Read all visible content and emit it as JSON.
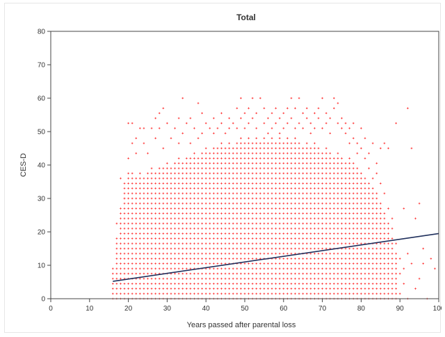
{
  "chart_data": {
    "type": "scatter",
    "title": "Total",
    "xlabel": "Years passed after parental loss",
    "ylabel": "CES-D",
    "xlim": [
      0,
      100
    ],
    "ylim": [
      0,
      80
    ],
    "x_ticks": [
      "0",
      "10",
      "20",
      "30",
      "40",
      "50",
      "60",
      "70",
      "80",
      "90",
      "100"
    ],
    "y_ticks": [
      "0",
      "10",
      "20",
      "30",
      "40",
      "50",
      "60",
      "70",
      "80"
    ],
    "grid": false,
    "legend": "none",
    "marker_color": "#ff3b3b",
    "fit_line_color": "#1f2f5c",
    "fit_line": {
      "x": [
        16,
        100
      ],
      "y": [
        5.2,
        19.5
      ]
    },
    "y_levels": [
      0,
      1.5,
      3,
      4.5,
      6,
      7.5,
      9,
      10.5,
      12,
      13.5,
      15,
      16.5,
      18,
      19.5,
      21,
      22.5,
      24,
      25.5,
      27,
      28.5,
      30,
      31.5,
      33,
      34.5,
      36,
      37.5,
      39,
      40.5,
      42,
      43.5,
      45,
      46.5,
      48,
      49.5,
      51,
      52.5,
      54,
      55.5,
      57,
      58.5,
      60
    ],
    "dense_columns": [
      {
        "x": 16,
        "top": 9
      },
      {
        "x": 17,
        "top": 18
      },
      {
        "x": 18,
        "top": 27
      },
      {
        "x": 19,
        "top": 34.5
      },
      {
        "x": 20,
        "top": 37.5
      },
      {
        "x": 21,
        "top": 37.5
      },
      {
        "x": 22,
        "top": 36
      },
      {
        "x": 23,
        "top": 37.5
      },
      {
        "x": 24,
        "top": 36
      },
      {
        "x": 25,
        "top": 37.5
      },
      {
        "x": 26,
        "top": 39
      },
      {
        "x": 27,
        "top": 37.5
      },
      {
        "x": 28,
        "top": 39
      },
      {
        "x": 29,
        "top": 39
      },
      {
        "x": 30,
        "top": 40.5
      },
      {
        "x": 31,
        "top": 39
      },
      {
        "x": 32,
        "top": 40.5
      },
      {
        "x": 33,
        "top": 42
      },
      {
        "x": 34,
        "top": 40.5
      },
      {
        "x": 35,
        "top": 42
      },
      {
        "x": 36,
        "top": 42
      },
      {
        "x": 37,
        "top": 43.5
      },
      {
        "x": 38,
        "top": 42
      },
      {
        "x": 39,
        "top": 43.5
      },
      {
        "x": 40,
        "top": 45
      },
      {
        "x": 41,
        "top": 43.5
      },
      {
        "x": 42,
        "top": 45
      },
      {
        "x": 43,
        "top": 45
      },
      {
        "x": 44,
        "top": 46.5
      },
      {
        "x": 45,
        "top": 45
      },
      {
        "x": 46,
        "top": 46.5
      },
      {
        "x": 47,
        "top": 45
      },
      {
        "x": 48,
        "top": 46.5
      },
      {
        "x": 49,
        "top": 48
      },
      {
        "x": 50,
        "top": 46.5
      },
      {
        "x": 51,
        "top": 48
      },
      {
        "x": 52,
        "top": 46.5
      },
      {
        "x": 53,
        "top": 48
      },
      {
        "x": 54,
        "top": 46.5
      },
      {
        "x": 55,
        "top": 48
      },
      {
        "x": 56,
        "top": 46.5
      },
      {
        "x": 57,
        "top": 48
      },
      {
        "x": 58,
        "top": 46.5
      },
      {
        "x": 59,
        "top": 48
      },
      {
        "x": 60,
        "top": 46.5
      },
      {
        "x": 61,
        "top": 48
      },
      {
        "x": 62,
        "top": 46.5
      },
      {
        "x": 63,
        "top": 48
      },
      {
        "x": 64,
        "top": 46.5
      },
      {
        "x": 65,
        "top": 45
      },
      {
        "x": 66,
        "top": 46.5
      },
      {
        "x": 67,
        "top": 45
      },
      {
        "x": 68,
        "top": 46.5
      },
      {
        "x": 69,
        "top": 45
      },
      {
        "x": 70,
        "top": 43.5
      },
      {
        "x": 71,
        "top": 45
      },
      {
        "x": 72,
        "top": 43.5
      },
      {
        "x": 73,
        "top": 42
      },
      {
        "x": 74,
        "top": 43.5
      },
      {
        "x": 75,
        "top": 42
      },
      {
        "x": 76,
        "top": 40.5
      },
      {
        "x": 77,
        "top": 42
      },
      {
        "x": 78,
        "top": 40.5
      },
      {
        "x": 79,
        "top": 39
      },
      {
        "x": 80,
        "top": 37.5
      },
      {
        "x": 81,
        "top": 36
      },
      {
        "x": 82,
        "top": 34.5
      },
      {
        "x": 83,
        "top": 33
      },
      {
        "x": 84,
        "top": 31.5
      },
      {
        "x": 85,
        "top": 28.5
      },
      {
        "x": 86,
        "top": 25.5
      },
      {
        "x": 87,
        "top": 22.5
      },
      {
        "x": 88,
        "top": 18
      },
      {
        "x": 89,
        "top": 13.5
      }
    ],
    "scattered_points": [
      [
        17,
        22.5
      ],
      [
        18,
        36
      ],
      [
        19,
        30
      ],
      [
        20,
        52.5
      ],
      [
        20,
        42
      ],
      [
        21,
        52.5
      ],
      [
        21,
        46.5
      ],
      [
        22,
        48
      ],
      [
        22,
        43.5
      ],
      [
        23,
        51
      ],
      [
        24,
        46.5
      ],
      [
        24,
        51
      ],
      [
        25,
        43.5
      ],
      [
        26,
        51
      ],
      [
        27,
        54
      ],
      [
        27,
        48
      ],
      [
        28,
        55.5
      ],
      [
        28,
        51
      ],
      [
        29,
        57
      ],
      [
        29,
        45
      ],
      [
        30,
        52.5
      ],
      [
        31,
        48
      ],
      [
        32,
        51
      ],
      [
        33,
        54
      ],
      [
        33,
        46.5
      ],
      [
        34,
        60
      ],
      [
        34,
        49.5
      ],
      [
        35,
        52.5
      ],
      [
        36,
        54
      ],
      [
        36,
        46.5
      ],
      [
        37,
        51
      ],
      [
        38,
        58.5
      ],
      [
        38,
        48
      ],
      [
        39,
        55.5
      ],
      [
        39,
        49.5
      ],
      [
        40,
        52.5
      ],
      [
        41,
        51
      ],
      [
        42,
        54
      ],
      [
        42,
        49.5
      ],
      [
        43,
        51
      ],
      [
        44,
        55.5
      ],
      [
        44,
        52.5
      ],
      [
        45,
        49.5
      ],
      [
        46,
        54
      ],
      [
        46,
        51
      ],
      [
        47,
        52.5
      ],
      [
        48,
        57
      ],
      [
        48,
        51
      ],
      [
        49,
        60
      ],
      [
        49,
        54
      ],
      [
        50,
        55.5
      ],
      [
        50,
        51
      ],
      [
        51,
        57
      ],
      [
        51,
        52.5
      ],
      [
        52,
        54
      ],
      [
        52,
        60
      ],
      [
        53,
        51
      ],
      [
        53,
        55.5
      ],
      [
        54,
        60
      ],
      [
        55,
        52.5
      ],
      [
        55,
        57
      ],
      [
        56,
        54
      ],
      [
        56,
        49.5
      ],
      [
        57,
        55.5
      ],
      [
        57,
        51
      ],
      [
        58,
        52.5
      ],
      [
        58,
        57
      ],
      [
        59,
        54
      ],
      [
        59,
        49.5
      ],
      [
        60,
        55.5
      ],
      [
        60,
        51
      ],
      [
        61,
        57
      ],
      [
        61,
        52.5
      ],
      [
        62,
        60
      ],
      [
        62,
        54
      ],
      [
        63,
        51
      ],
      [
        63,
        57
      ],
      [
        64,
        60
      ],
      [
        64,
        52.5
      ],
      [
        65,
        55.5
      ],
      [
        65,
        51
      ],
      [
        66,
        54
      ],
      [
        66,
        57
      ],
      [
        67,
        52.5
      ],
      [
        67,
        49.5
      ],
      [
        68,
        55.5
      ],
      [
        68,
        51
      ],
      [
        69,
        54
      ],
      [
        69,
        57
      ],
      [
        70,
        60
      ],
      [
        70,
        51
      ],
      [
        71,
        52.5
      ],
      [
        71,
        55.5
      ],
      [
        72,
        54
      ],
      [
        72,
        49.5
      ],
      [
        73,
        60
      ],
      [
        73,
        57
      ],
      [
        74,
        52.5
      ],
      [
        74,
        58.5
      ],
      [
        75,
        51
      ],
      [
        75,
        54
      ],
      [
        76,
        49.5
      ],
      [
        76,
        52.5
      ],
      [
        77,
        51
      ],
      [
        77,
        46.5
      ],
      [
        78,
        48
      ],
      [
        78,
        52.5
      ],
      [
        79,
        46.5
      ],
      [
        79,
        43.5
      ],
      [
        80,
        51
      ],
      [
        80,
        45
      ],
      [
        81,
        42
      ],
      [
        81,
        48
      ],
      [
        82,
        43.5
      ],
      [
        82,
        39
      ],
      [
        83,
        46.5
      ],
      [
        83,
        36
      ],
      [
        84,
        40.5
      ],
      [
        84,
        37.5
      ],
      [
        85,
        45
      ],
      [
        85,
        34.5
      ],
      [
        86,
        46.5
      ],
      [
        86,
        31.5
      ],
      [
        87,
        45
      ],
      [
        87,
        27
      ],
      [
        88,
        21
      ],
      [
        88,
        24
      ],
      [
        89,
        52.5
      ],
      [
        89,
        16.5
      ],
      [
        90,
        12
      ],
      [
        90,
        7.5
      ],
      [
        90,
        1.5
      ],
      [
        91,
        9
      ],
      [
        91,
        27
      ],
      [
        91,
        4.5
      ],
      [
        92,
        57
      ],
      [
        92,
        13.5
      ],
      [
        92,
        0
      ],
      [
        93,
        45
      ],
      [
        93,
        10.5
      ],
      [
        94,
        24
      ],
      [
        94,
        3
      ],
      [
        95,
        28.5
      ],
      [
        95,
        6
      ],
      [
        96,
        15
      ],
      [
        96,
        10.5
      ],
      [
        97,
        0
      ],
      [
        98,
        12
      ],
      [
        99,
        9
      ]
    ]
  }
}
